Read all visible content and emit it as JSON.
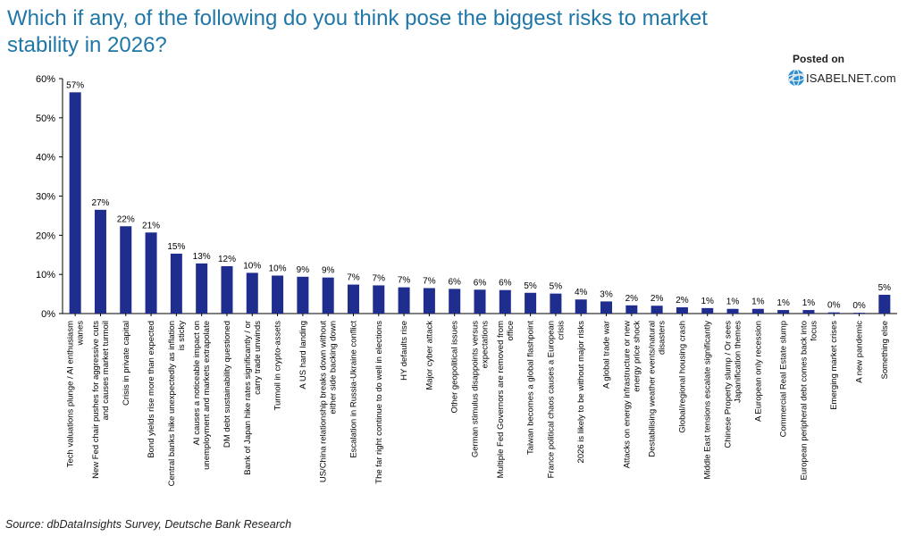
{
  "header": {
    "title": "Which if any, of the following do you think pose the biggest risks to market stability in 2026?",
    "posted_on": "Posted on",
    "brand": "ISABELNET.com"
  },
  "footer": {
    "source": "Source: dbDataInsights Survey, Deutsche Bank Research"
  },
  "colors": {
    "bar": "#1f2d8f",
    "title": "#1f77a8"
  },
  "chart_data": {
    "type": "bar",
    "title": "",
    "xlabel": "",
    "ylabel": "",
    "ylim": [
      0,
      60
    ],
    "yticks": [
      0,
      10,
      20,
      30,
      40,
      50,
      60
    ],
    "ytick_labels": [
      "0%",
      "10%",
      "20%",
      "30%",
      "40%",
      "50%",
      "60%"
    ],
    "grid": false,
    "categories": [
      [
        "Tech valuations plunge / AI enthusiasm",
        "wanes"
      ],
      [
        "New Fed chair pushes for aggressive cuts",
        "and causes market turmoil"
      ],
      [
        "Crisis in private capital"
      ],
      [
        "Bond yields rise more than expected"
      ],
      [
        "Central banks hike unexpectedly as inflation",
        "is sticky"
      ],
      [
        "AI causes a noticeable impact on",
        "unemployment and markets extrapolate"
      ],
      [
        "DM debt sustainability questioned"
      ],
      [
        "Bank of Japan hike rates significantly / or",
        "carry trade unwinds"
      ],
      [
        "Turmoil in crypto-assets"
      ],
      [
        "A US hard landing"
      ],
      [
        "US/China relationship breaks down without",
        "either side backing down"
      ],
      [
        "Escalation in Russia-Ukraine conflict"
      ],
      [
        "The far right continue to do well in elections"
      ],
      [
        "HY defaults rise"
      ],
      [
        "Major cyber attack"
      ],
      [
        "Other geopolitical issues"
      ],
      [
        "German stimulus disappoints versus",
        "expectations"
      ],
      [
        "Multiple Fed Governors are removed from",
        "office"
      ],
      [
        "Taiwan becomes a global flashpoint"
      ],
      [
        "France political chaos causes a European",
        "crisis"
      ],
      [
        "2026 is likely to be without major risks"
      ],
      [
        "A global trade war"
      ],
      [
        "Attacks on energy infrastructure or new",
        "energy price shock"
      ],
      [
        "Destabilising weather events/natural",
        "disasters"
      ],
      [
        "Global/regional housing crash"
      ],
      [
        "Middle East tensions escalate significantly"
      ],
      [
        "Chinese Property slump / Or sees",
        "Japanification themes"
      ],
      [
        "A European only recession"
      ],
      [
        "Commercial Real Estate slump"
      ],
      [
        "European peripheral debt comes back into",
        "focus"
      ],
      [
        "Emerging market crises"
      ],
      [
        "A new pandemic"
      ],
      [
        "Something else"
      ]
    ],
    "values": [
      56.5,
      26.5,
      22.3,
      20.7,
      15.3,
      12.8,
      12.1,
      10.4,
      9.7,
      9.4,
      9.2,
      7.4,
      7.2,
      6.7,
      6.5,
      6.3,
      6.1,
      6.0,
      5.3,
      5.1,
      3.6,
      3.1,
      2.1,
      2.0,
      1.6,
      1.4,
      1.2,
      1.2,
      0.9,
      0.9,
      0.3,
      0.2,
      4.8
    ],
    "data_labels": [
      "57%",
      "27%",
      "22%",
      "21%",
      "15%",
      "13%",
      "12%",
      "10%",
      "10%",
      "9%",
      "9%",
      "7%",
      "7%",
      "7%",
      "7%",
      "6%",
      "6%",
      "6%",
      "5%",
      "5%",
      "4%",
      "3%",
      "2%",
      "2%",
      "2%",
      "1%",
      "1%",
      "1%",
      "1%",
      "1%",
      "0%",
      "0%",
      "5%"
    ]
  }
}
